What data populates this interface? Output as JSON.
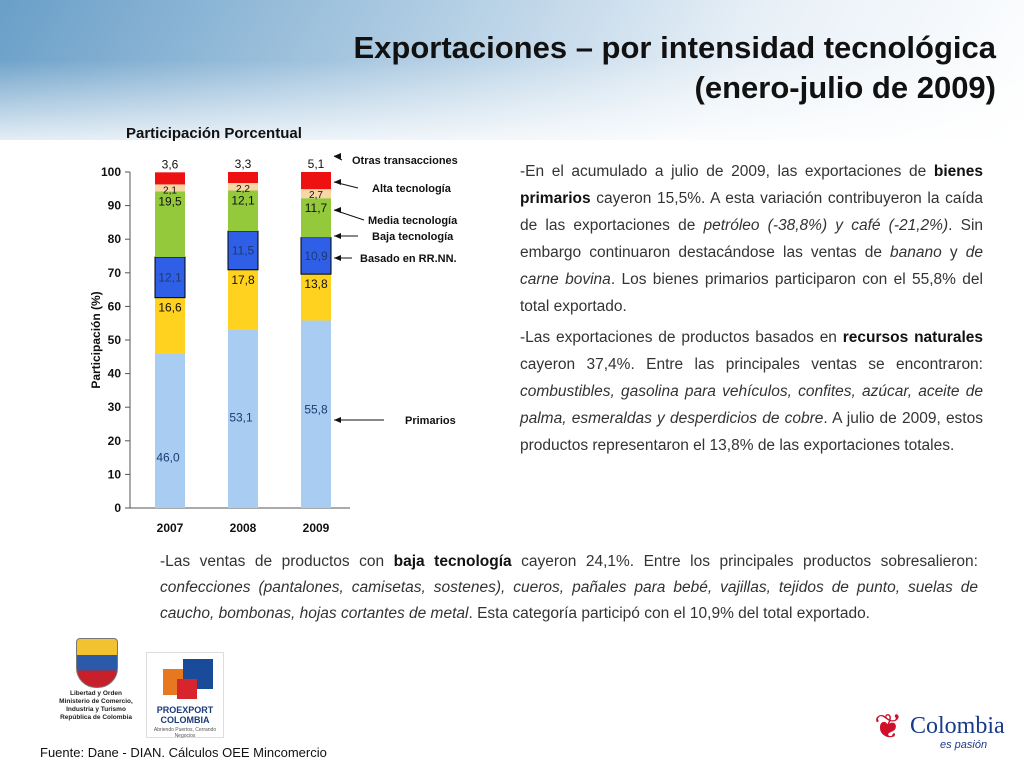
{
  "header": {
    "title_line1": "Exportaciones – por intensidad tecnológica",
    "title_line2": "(enero-julio de 2009)"
  },
  "chart_data": {
    "type": "bar",
    "stacked": true,
    "title": "Participación Porcentual",
    "ylabel": "Participación (%)",
    "ylim": [
      0,
      100
    ],
    "yticks": [
      0,
      10,
      20,
      30,
      40,
      50,
      60,
      70,
      80,
      90,
      100
    ],
    "categories": [
      "2007",
      "2008",
      "2009"
    ],
    "series": [
      {
        "name": "Primarios",
        "color": "#a9cdf2",
        "values": [
          46.0,
          53.1,
          55.8
        ],
        "labels": [
          "46,0",
          "53,1",
          "55,8"
        ]
      },
      {
        "name": "Basado en RR.NN.",
        "color": "#ffd21f",
        "values": [
          16.6,
          17.8,
          13.8
        ],
        "labels": [
          "16,6",
          "17,8",
          "13,8"
        ]
      },
      {
        "name": "Baja tecnología",
        "color": "#2f5fe6",
        "values": [
          12.1,
          11.5,
          10.9
        ],
        "labels": [
          "12,1",
          "11,5",
          "10,9"
        ]
      },
      {
        "name": "Media tecnología",
        "color": "#93c93a",
        "values": [
          19.5,
          12.1,
          11.7
        ],
        "labels": [
          "19,5",
          "12,1",
          "11,7"
        ]
      },
      {
        "name": "Alta tecnología",
        "color": "#f8d6a6",
        "values": [
          2.1,
          2.2,
          2.7
        ],
        "labels": [
          "2,1",
          "2,2",
          "2,7"
        ]
      },
      {
        "name": "Otras transacciones",
        "color": "#ee1111",
        "values": [
          3.6,
          3.3,
          5.1
        ],
        "labels": [
          "3,6",
          "3,3",
          "5,1"
        ]
      }
    ],
    "legend": "right"
  },
  "text": {
    "p1": [
      {
        "t": "-En el acumulado a julio de 2009, las exportaciones de "
      },
      {
        "t": "bienes primarios",
        "s": "b"
      },
      {
        "t": " cayeron 15,5%. A esta variación contribuyeron la caída de las exportaciones de "
      },
      {
        "t": "petróleo (-38,8%) y café (-21,2%)",
        "s": "i"
      },
      {
        "t": ". Sin embargo continuaron destacándose las ventas de "
      },
      {
        "t": "banano",
        "s": "i"
      },
      {
        "t": " y "
      },
      {
        "t": "de carne bovina",
        "s": "i"
      },
      {
        "t": ". Los bienes primarios participaron con el 55,8% del total exportado."
      }
    ],
    "p2": [
      {
        "t": "-Las exportaciones de productos basados en "
      },
      {
        "t": "recursos naturales",
        "s": "b"
      },
      {
        "t": " cayeron 37,4%. Entre las principales ventas se encontraron: "
      },
      {
        "t": "combustibles, gasolina para vehículos, confites, azúcar, aceite de palma, esmeraldas y desperdicios de cobre",
        "s": "i"
      },
      {
        "t": ". A julio de 2009, estos productos representaron el 13,8% de las exportaciones totales."
      }
    ],
    "p3": [
      {
        "t": "-Las ventas de productos con "
      },
      {
        "t": "baja tecnología",
        "s": "b"
      },
      {
        "t": " cayeron 24,1%. Entre los principales productos sobresalieron: "
      },
      {
        "t": "confecciones (pantalones, camisetas, sostenes), cueros, pañales para bebé, vajillas, tejidos de punto, suelas de caucho, bombonas, hojas cortantes de metal",
        "s": "i"
      },
      {
        "t": ". Esta categoría participó con el 10,9% del total exportado."
      }
    ]
  },
  "logos": {
    "ministry_caption": "Libertad y Orden Ministerio de Comercio, Industria y Turismo República de Colombia",
    "proexport_name": "PROEXPORT COLOMBIA",
    "proexport_tagline": "Abriendo Puertos, Cerrando Negocios",
    "colombia_word": "Colombia",
    "colombia_tagline": "es pasión"
  },
  "footer": {
    "source": "Fuente: Dane - DIAN. Cálculos OEE Mincomercio"
  }
}
